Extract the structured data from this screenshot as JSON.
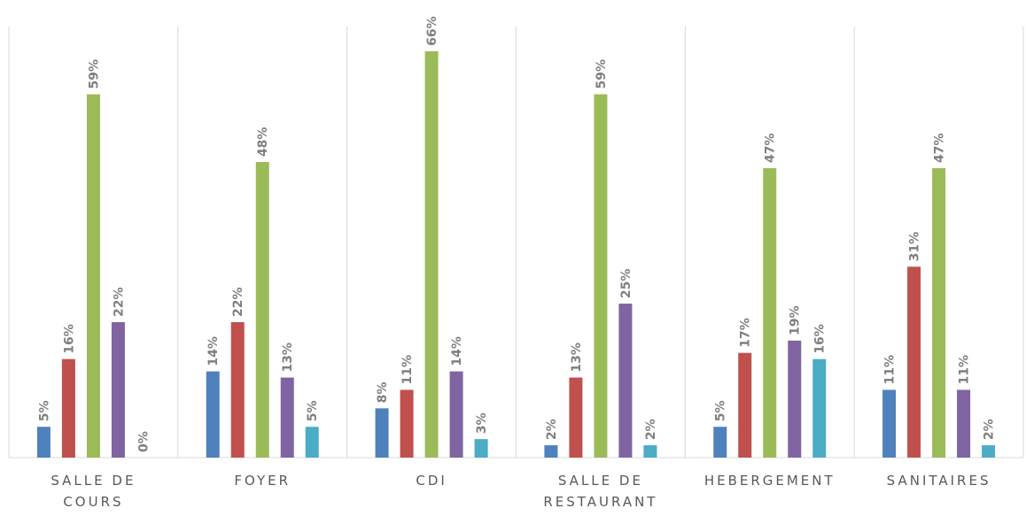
{
  "chart_data": {
    "type": "bar",
    "categories": [
      "SALLE DE COURS",
      "FOYER",
      "CDI",
      "SALLE DE RESTAURANT",
      "HEBERGEMENT",
      "SANITAIRES"
    ],
    "series": [
      {
        "color": "#4f81bd",
        "values": [
          5,
          14,
          8,
          2,
          5,
          11
        ],
        "value_labels": [
          "5%",
          "14%",
          "8%",
          "2%",
          "5%",
          "11%"
        ]
      },
      {
        "color": "#c0504d",
        "values": [
          16,
          22,
          11,
          13,
          17,
          31
        ],
        "value_labels": [
          "16%",
          "22%",
          "11%",
          "13%",
          "17%",
          "31%"
        ]
      },
      {
        "color": "#9bbb59",
        "values": [
          59,
          48,
          66,
          59,
          47,
          47
        ],
        "value_labels": [
          "59%",
          "48%",
          "66%",
          "59%",
          "47%",
          "47%"
        ]
      },
      {
        "color": "#8064a2",
        "values": [
          22,
          13,
          14,
          25,
          19,
          11
        ],
        "value_labels": [
          "22%",
          "13%",
          "14%",
          "25%",
          "19%",
          "11%"
        ]
      },
      {
        "color": "#4bacc6",
        "values": [
          0,
          5,
          3,
          2,
          16,
          2
        ],
        "value_labels": [
          "0%",
          "5%",
          "3%",
          "2%",
          "16%",
          "2%"
        ]
      }
    ],
    "ylim": [
      0,
      70
    ]
  }
}
